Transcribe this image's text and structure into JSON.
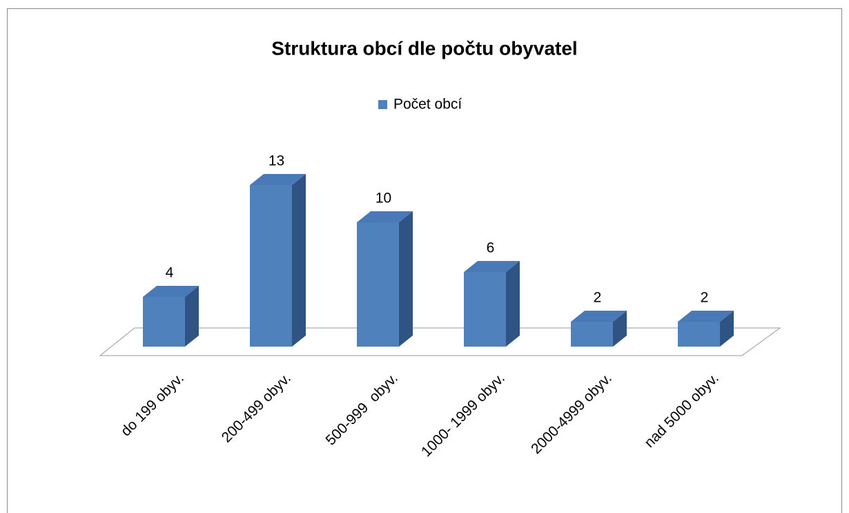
{
  "chart_data": {
    "type": "bar3d",
    "title": "Struktura obcí dle počtu obyvatel",
    "categories": [
      "do 199 obyv.",
      "200-499 obyv.",
      "500-999  obyv.",
      "1000- 1999 obyv.",
      "2000-4999 obyv.",
      "nad 5000 obyv."
    ],
    "series": [
      {
        "name": "Počet obcí",
        "color": "#4f81bd",
        "values": [
          4,
          13,
          10,
          6,
          2,
          2
        ]
      }
    ]
  }
}
